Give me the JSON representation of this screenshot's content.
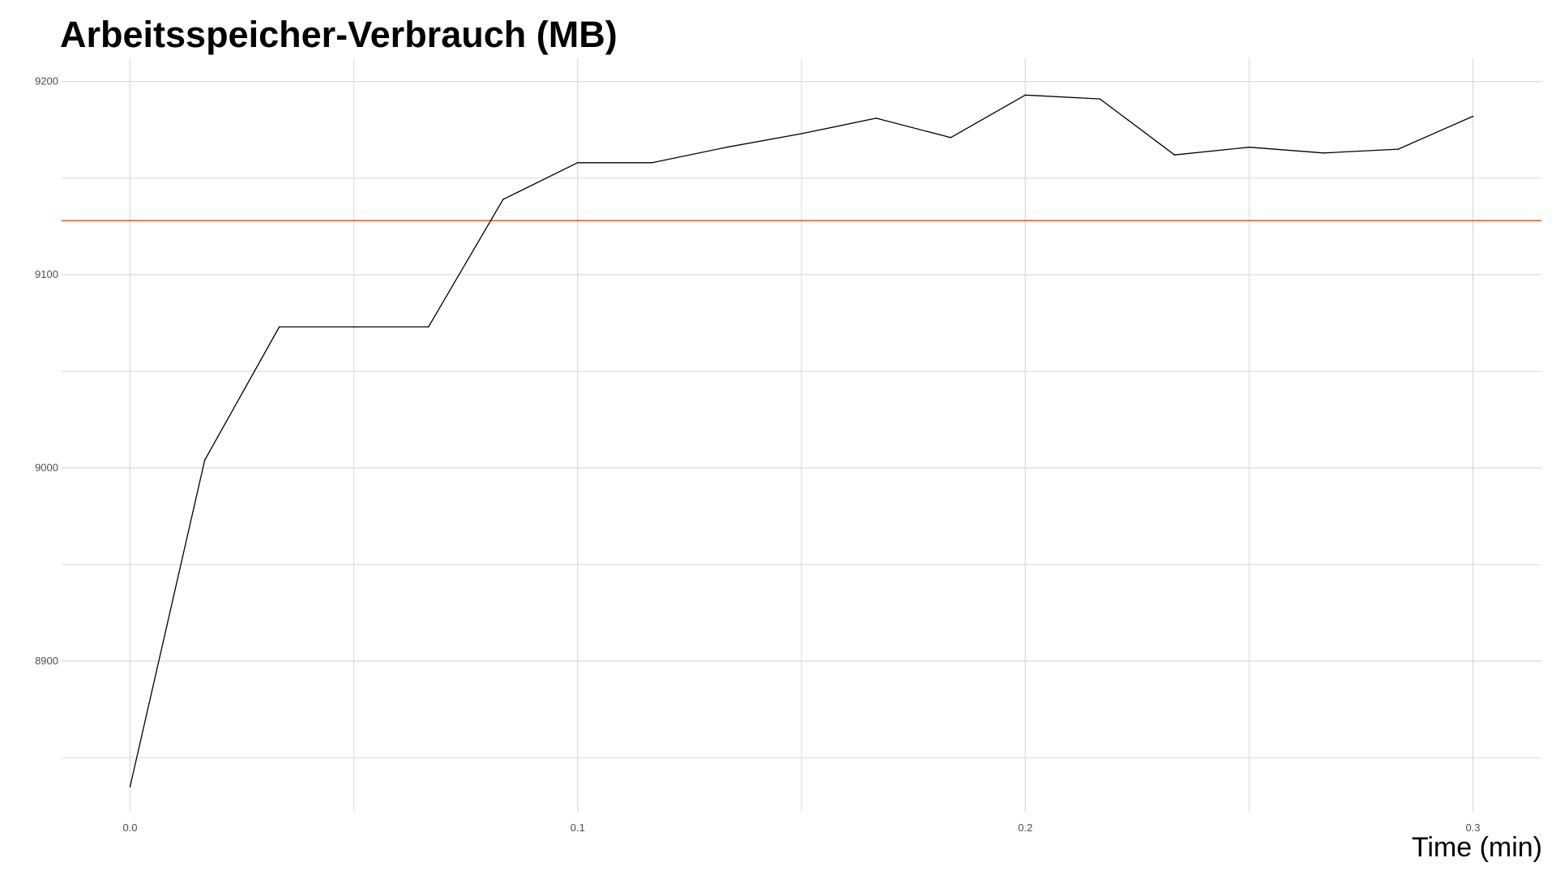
{
  "chart_data": {
    "type": "line",
    "title": "Arbeitsspeicher-Verbrauch (MB)",
    "xlabel": "Time (min)",
    "ylabel": "",
    "xlim": [
      -0.0153,
      0.3153
    ],
    "ylim": [
      8822,
      9212
    ],
    "x_ticks": [
      0.0,
      0.1,
      0.2,
      0.3
    ],
    "x_tick_labels": [
      "0.0",
      "0.1",
      "0.2",
      "0.3"
    ],
    "x_minor_grid": [
      0.05,
      0.15,
      0.25
    ],
    "y_ticks": [
      8900,
      9000,
      9100,
      9200
    ],
    "y_tick_labels": [
      "8900",
      "9000",
      "9100",
      "9200"
    ],
    "y_minor_grid": [
      8850,
      8950,
      9050,
      9150
    ],
    "grid": true,
    "grid_color": "#d9d9d9",
    "series": [
      {
        "color": "#000000",
        "x": [
          0.0,
          0.01667,
          0.03333,
          0.05,
          0.06667,
          0.08333,
          0.1,
          0.11667,
          0.13333,
          0.15,
          0.16667,
          0.18333,
          0.2,
          0.21667,
          0.23333,
          0.25,
          0.26667,
          0.28333,
          0.3
        ],
        "values": [
          8835,
          9004,
          9073,
          9073,
          9073,
          9139,
          9158,
          9158,
          9166,
          9173,
          9181,
          9171,
          9193,
          9191,
          9162,
          9166,
          9163,
          9165,
          9182
        ]
      }
    ],
    "reference_line": {
      "orientation": "horizontal",
      "y": 9128,
      "color": "#e0652b"
    }
  }
}
